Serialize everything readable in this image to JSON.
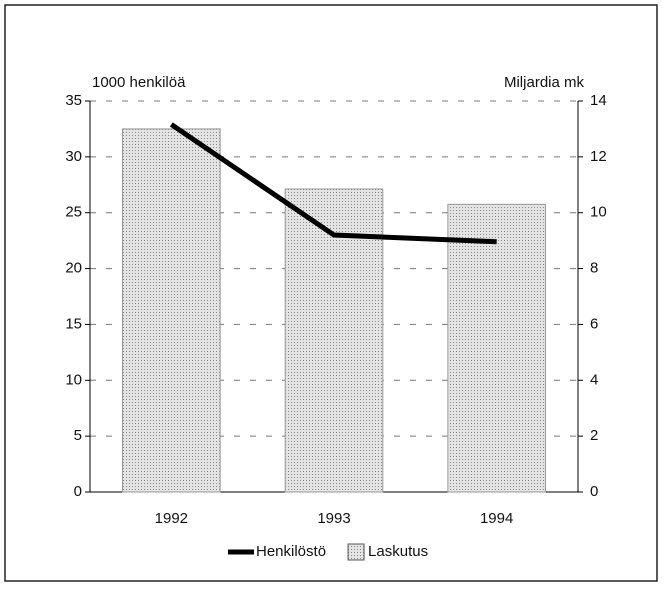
{
  "chart_data": {
    "type": "bar_line",
    "y_label": "1000 henkilöä",
    "y2_label": "Miljardia mk",
    "categories": [
      "1992",
      "1993",
      "1994"
    ],
    "series": [
      {
        "name": "Henkilöstö",
        "type": "line",
        "color": "#000000",
        "values": [
          32.9,
          23.0,
          22.4
        ]
      },
      {
        "name": "Laskutus",
        "type": "bar",
        "color": "#c8c8c8",
        "axis": "y2",
        "values": [
          13.0,
          10.85,
          10.3
        ]
      }
    ],
    "ylim": [
      0,
      35
    ],
    "yticks": [
      0,
      5,
      10,
      15,
      20,
      25,
      30,
      35
    ],
    "y2lim": [
      0,
      14
    ],
    "y2ticks": [
      0,
      2,
      4,
      6,
      8,
      10,
      12,
      14
    ],
    "grid": true,
    "legend": "bottom"
  }
}
